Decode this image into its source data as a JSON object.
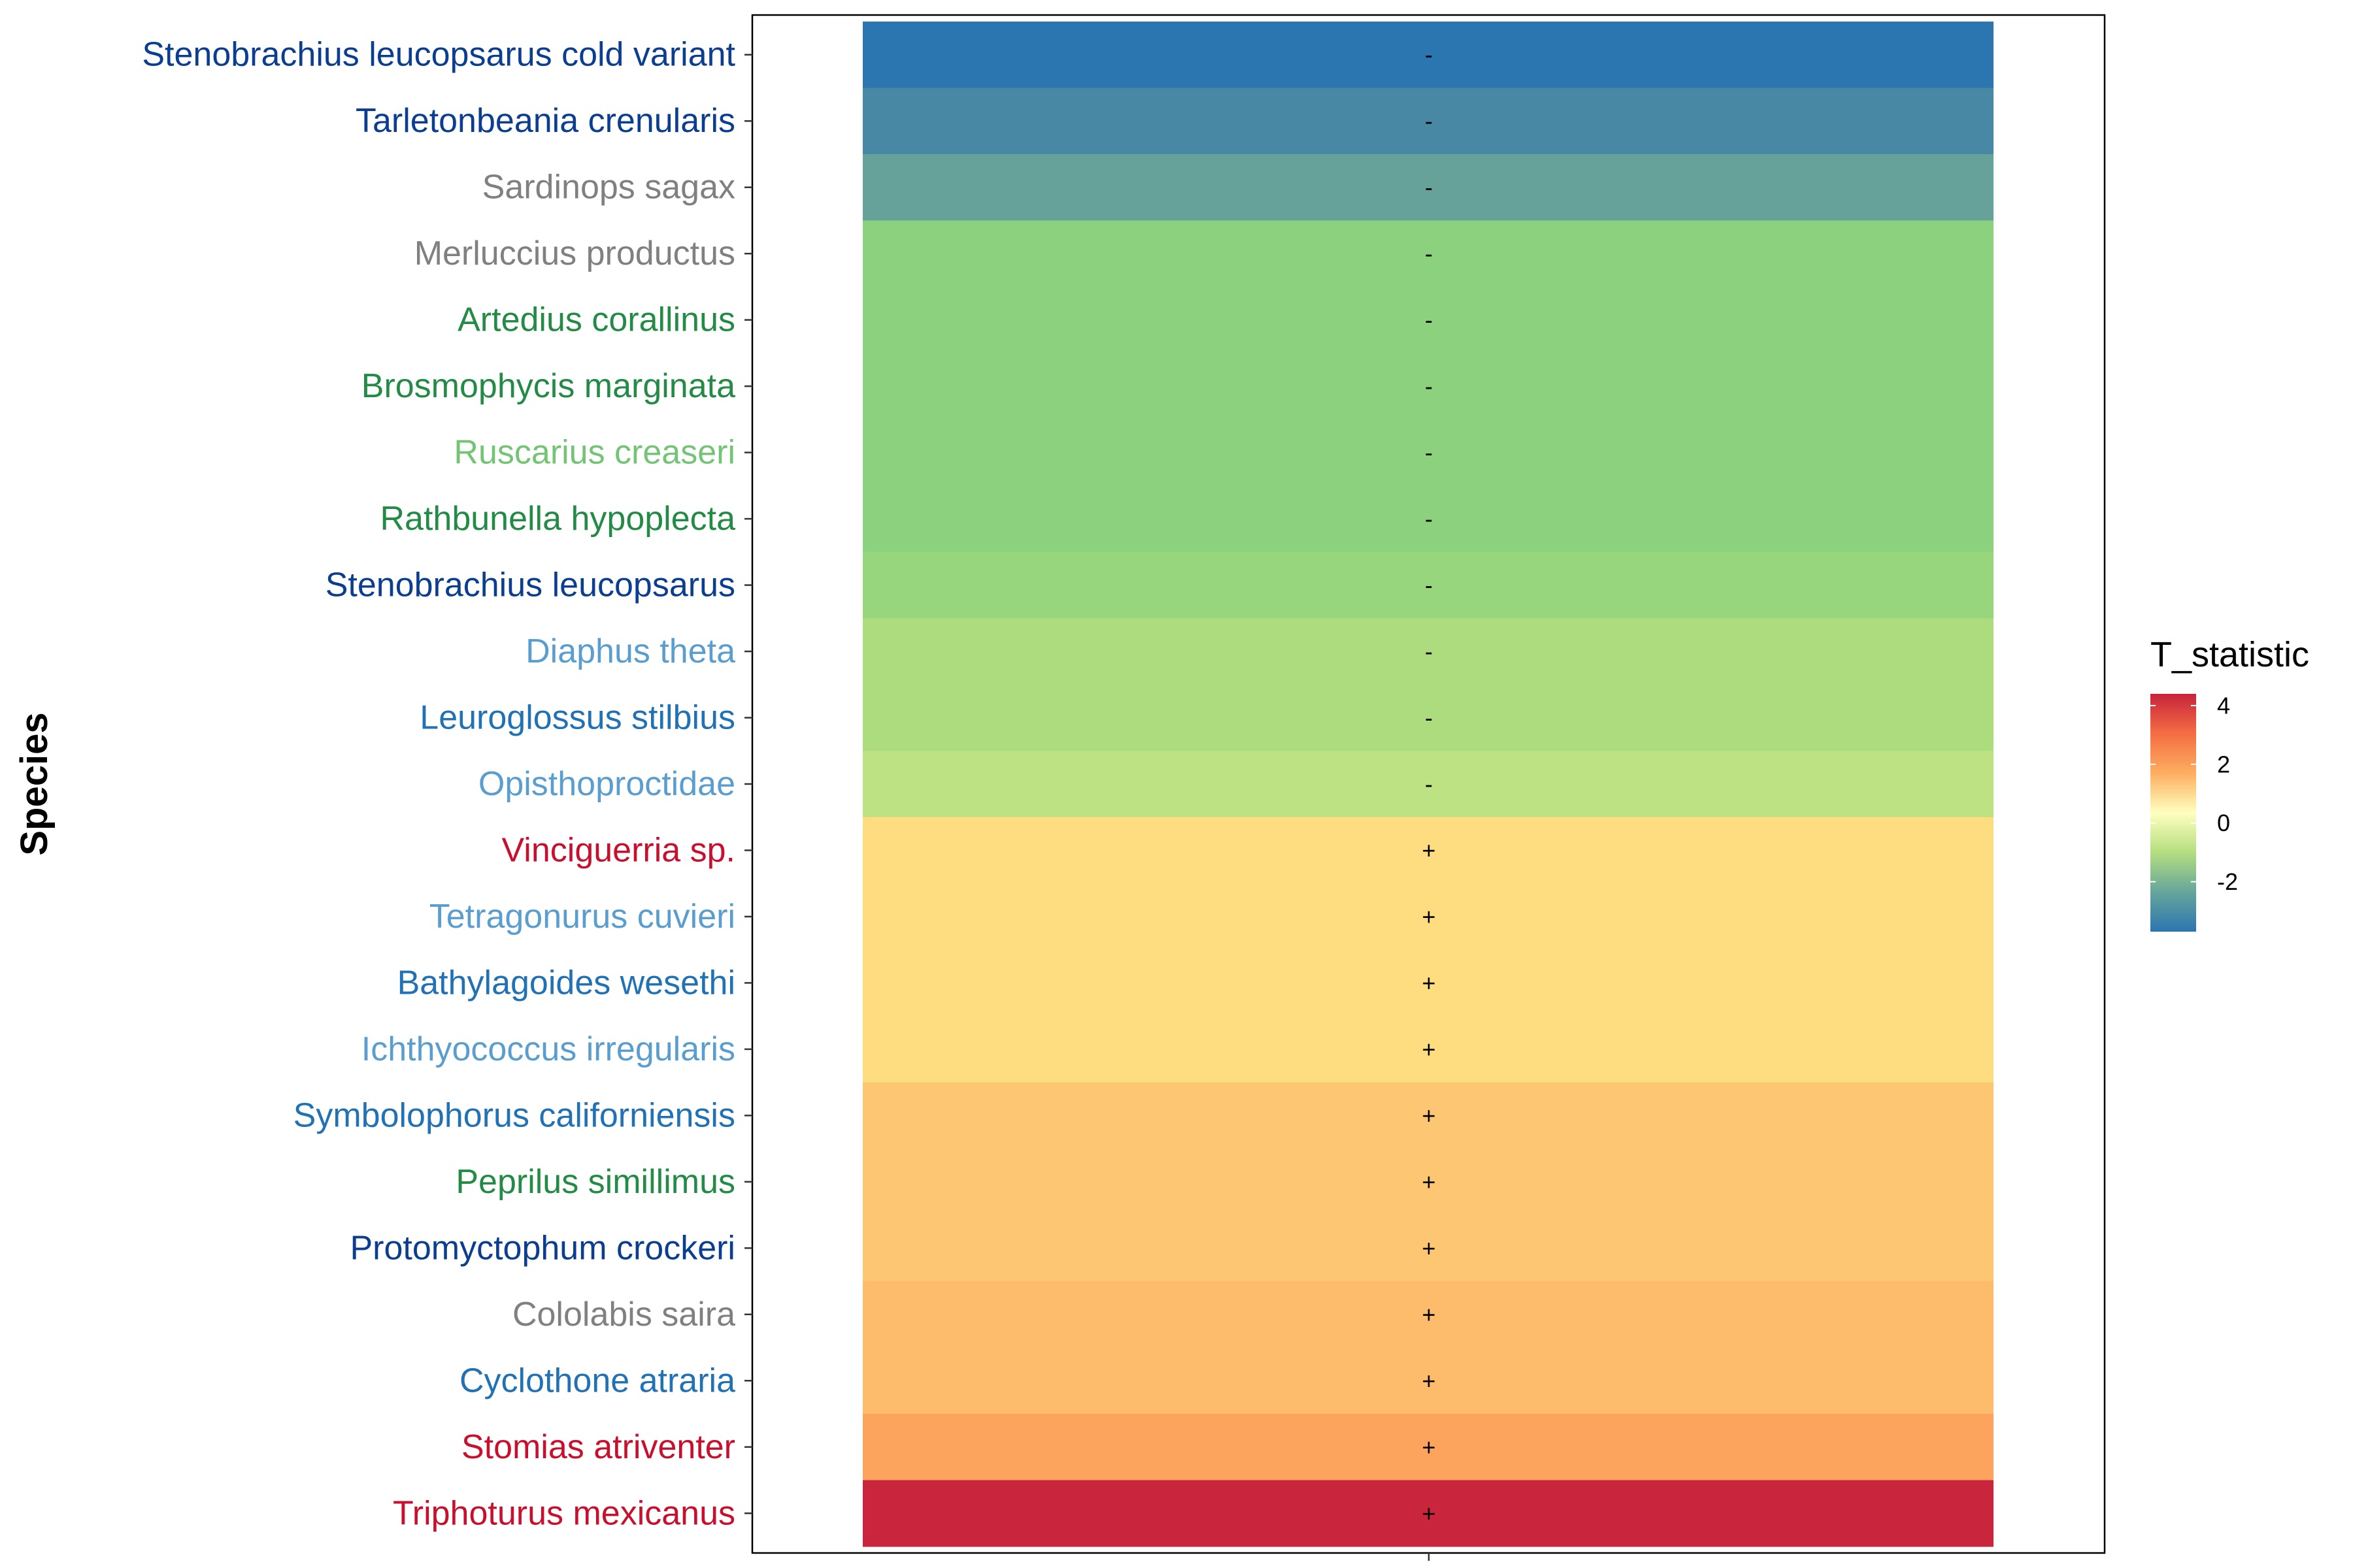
{
  "chart_data": {
    "type": "heatmap",
    "ylabel": "Species",
    "legend": {
      "title": "T_statistic",
      "placement": "right",
      "ticks": [
        4,
        2,
        0,
        -2
      ],
      "range": [
        -3.7,
        4.4
      ],
      "colors": [
        "#2B76B0",
        "#66A59B",
        "#B5DE80",
        "#FFFFBF",
        "#FDAE61",
        "#F46D43",
        "#C8243C"
      ]
    },
    "rows": [
      {
        "species": "Stenobrachius leucopsarus cold variant",
        "label_color": "#0B3D91",
        "t": -3.7,
        "fill": "#2B76B0",
        "sign": "-"
      },
      {
        "species": "Tarletonbeania crenularis",
        "label_color": "#0B3D91",
        "t": -3.4,
        "fill": "#4888A4",
        "sign": "-"
      },
      {
        "species": "Sardinops sagax",
        "label_color": "#808080",
        "t": -3.0,
        "fill": "#66A29A",
        "sign": "-"
      },
      {
        "species": "Merluccius productus",
        "label_color": "#808080",
        "t": -2.7,
        "fill": "#8CD17E",
        "sign": "-"
      },
      {
        "species": "Artedius corallinus",
        "label_color": "#238B45",
        "t": -2.7,
        "fill": "#8CD17E",
        "sign": "-"
      },
      {
        "species": "Brosmophycis marginata",
        "label_color": "#238B45",
        "t": -2.7,
        "fill": "#8CD17E",
        "sign": "-"
      },
      {
        "species": "Ruscarius creaseri",
        "label_color": "#74C476",
        "t": -2.7,
        "fill": "#8CD17E",
        "sign": "-"
      },
      {
        "species": "Rathbunella hypoplecta",
        "label_color": "#238B45",
        "t": -2.7,
        "fill": "#8CD17E",
        "sign": "-"
      },
      {
        "species": "Stenobrachius leucopsarus",
        "label_color": "#0B3D91",
        "t": -2.6,
        "fill": "#97D67C",
        "sign": "-"
      },
      {
        "species": "Diaphus theta",
        "label_color": "#5A9ECF",
        "t": -2.4,
        "fill": "#ACDC7E",
        "sign": "-"
      },
      {
        "species": "Leuroglossus stilbius",
        "label_color": "#2171B5",
        "t": -2.4,
        "fill": "#ACDC7E",
        "sign": "-"
      },
      {
        "species": "Opisthoproctidae",
        "label_color": "#5A9ECF",
        "t": -2.2,
        "fill": "#BDE283",
        "sign": "-"
      },
      {
        "species": "Vinciguerria sp.",
        "label_color": "#C8102E",
        "t": 1.6,
        "fill": "#FDDD80",
        "sign": "+"
      },
      {
        "species": "Tetragonurus cuvieri",
        "label_color": "#5A9ECF",
        "t": 1.6,
        "fill": "#FDDD80",
        "sign": "+"
      },
      {
        "species": "Bathylagoides wesethi",
        "label_color": "#2171B5",
        "t": 1.6,
        "fill": "#FDDD80",
        "sign": "+"
      },
      {
        "species": "Ichthyococcus irregularis",
        "label_color": "#5A9ECF",
        "t": 1.6,
        "fill": "#FDDD80",
        "sign": "+"
      },
      {
        "species": "Symbolophorus californiensis",
        "label_color": "#2171B5",
        "t": 2.1,
        "fill": "#FDC673",
        "sign": "+"
      },
      {
        "species": "Peprilus simillimus",
        "label_color": "#238B45",
        "t": 2.1,
        "fill": "#FDC673",
        "sign": "+"
      },
      {
        "species": "Protomyctophum crockeri",
        "label_color": "#0B3D91",
        "t": 2.1,
        "fill": "#FDC673",
        "sign": "+"
      },
      {
        "species": "Cololabis saira",
        "label_color": "#808080",
        "t": 2.3,
        "fill": "#FDBB6C",
        "sign": "+"
      },
      {
        "species": "Cyclothone atraria",
        "label_color": "#2171B5",
        "t": 2.3,
        "fill": "#FDBB6C",
        "sign": "+"
      },
      {
        "species": "Stomias atriventer",
        "label_color": "#C8102E",
        "t": 2.7,
        "fill": "#FCA35D",
        "sign": "+"
      },
      {
        "species": "Triphoturus mexicanus",
        "label_color": "#C8102E",
        "t": 4.4,
        "fill": "#C9253C",
        "sign": "+"
      }
    ]
  }
}
